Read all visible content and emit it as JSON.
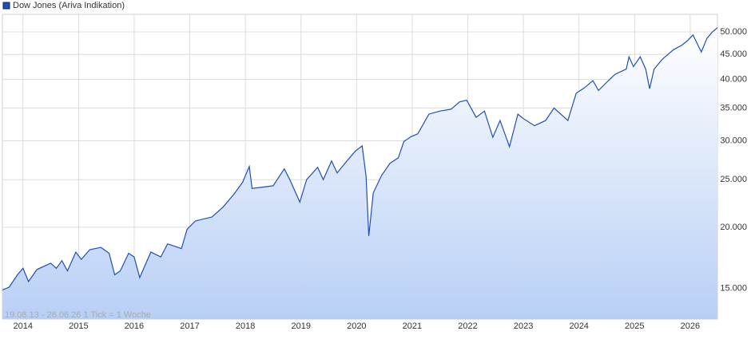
{
  "chart_data": {
    "type": "line",
    "log_scale": true,
    "grid": true,
    "annotation": "19.08.13 - 26.06.26   1 Tick = 1 Woche",
    "x": [
      2013.63,
      2013.75,
      2013.9,
      2014.0,
      2014.1,
      2014.25,
      2014.5,
      2014.6,
      2014.7,
      2014.8,
      2014.95,
      2015.05,
      2015.2,
      2015.4,
      2015.55,
      2015.65,
      2015.75,
      2015.9,
      2016.0,
      2016.1,
      2016.3,
      2016.48,
      2016.6,
      2016.85,
      2016.95,
      2017.1,
      2017.4,
      2017.6,
      2017.8,
      2017.95,
      2018.07,
      2018.12,
      2018.25,
      2018.5,
      2018.7,
      2018.8,
      2018.98,
      2019.1,
      2019.3,
      2019.4,
      2019.55,
      2019.65,
      2019.85,
      2019.98,
      2020.1,
      2020.17,
      2020.22,
      2020.3,
      2020.45,
      2020.6,
      2020.75,
      2020.85,
      2020.98,
      2021.1,
      2021.3,
      2021.5,
      2021.7,
      2021.85,
      2021.98,
      2022.15,
      2022.3,
      2022.45,
      2022.58,
      2022.75,
      2022.9,
      2023.0,
      2023.2,
      2023.4,
      2023.55,
      2023.8,
      2023.95,
      2024.1,
      2024.25,
      2024.35,
      2024.5,
      2024.65,
      2024.85,
      2024.9,
      2024.98,
      2025.1,
      2025.2,
      2025.27,
      2025.35,
      2025.5,
      2025.7,
      2025.85,
      2025.95,
      2026.05,
      2026.12,
      2026.2,
      2026.3,
      2026.4,
      2026.49
    ],
    "series": [
      {
        "name": "Dow Jones (Ariva Indikation)",
        "color": "#1f4fb5",
        "values": [
          14900,
          15100,
          16000,
          16500,
          15500,
          16400,
          16900,
          16500,
          17100,
          16300,
          17800,
          17200,
          18000,
          18200,
          17700,
          16000,
          16300,
          17700,
          17400,
          15800,
          17800,
          17400,
          18500,
          18100,
          19800,
          20600,
          21000,
          22000,
          23400,
          24700,
          26600,
          24000,
          24100,
          24300,
          26300,
          25000,
          22500,
          25000,
          26500,
          25000,
          27300,
          25800,
          27500,
          28600,
          29300,
          25400,
          19200,
          23500,
          25500,
          27000,
          27700,
          29900,
          30600,
          31000,
          34000,
          34500,
          34800,
          36000,
          36300,
          33500,
          34500,
          30500,
          33000,
          29200,
          34000,
          33300,
          32200,
          33000,
          35000,
          33000,
          37500,
          38500,
          39800,
          38000,
          39500,
          41000,
          42000,
          44500,
          42500,
          44500,
          42000,
          38300,
          42000,
          44000,
          46000,
          47000,
          48000,
          49300,
          47500,
          45500,
          48500,
          50000,
          51000
        ]
      }
    ],
    "xlim": [
      2013.63,
      2026.49
    ],
    "xticks": [
      2014,
      2015,
      2016,
      2017,
      2018,
      2019,
      2020,
      2021,
      2022,
      2023,
      2024,
      2025,
      2026
    ],
    "ylim": [
      13000,
      54300
    ],
    "yticks": [
      {
        "value": 15000,
        "label": "15.000"
      },
      {
        "value": 20000,
        "label": "20.000"
      },
      {
        "value": 25000,
        "label": "25.000"
      },
      {
        "value": 30000,
        "label": "30.000"
      },
      {
        "value": 35000,
        "label": "35.000"
      },
      {
        "value": 40000,
        "label": "40.000"
      },
      {
        "value": 45000,
        "label": "45.000"
      },
      {
        "value": 50000,
        "label": "50.000"
      }
    ]
  }
}
